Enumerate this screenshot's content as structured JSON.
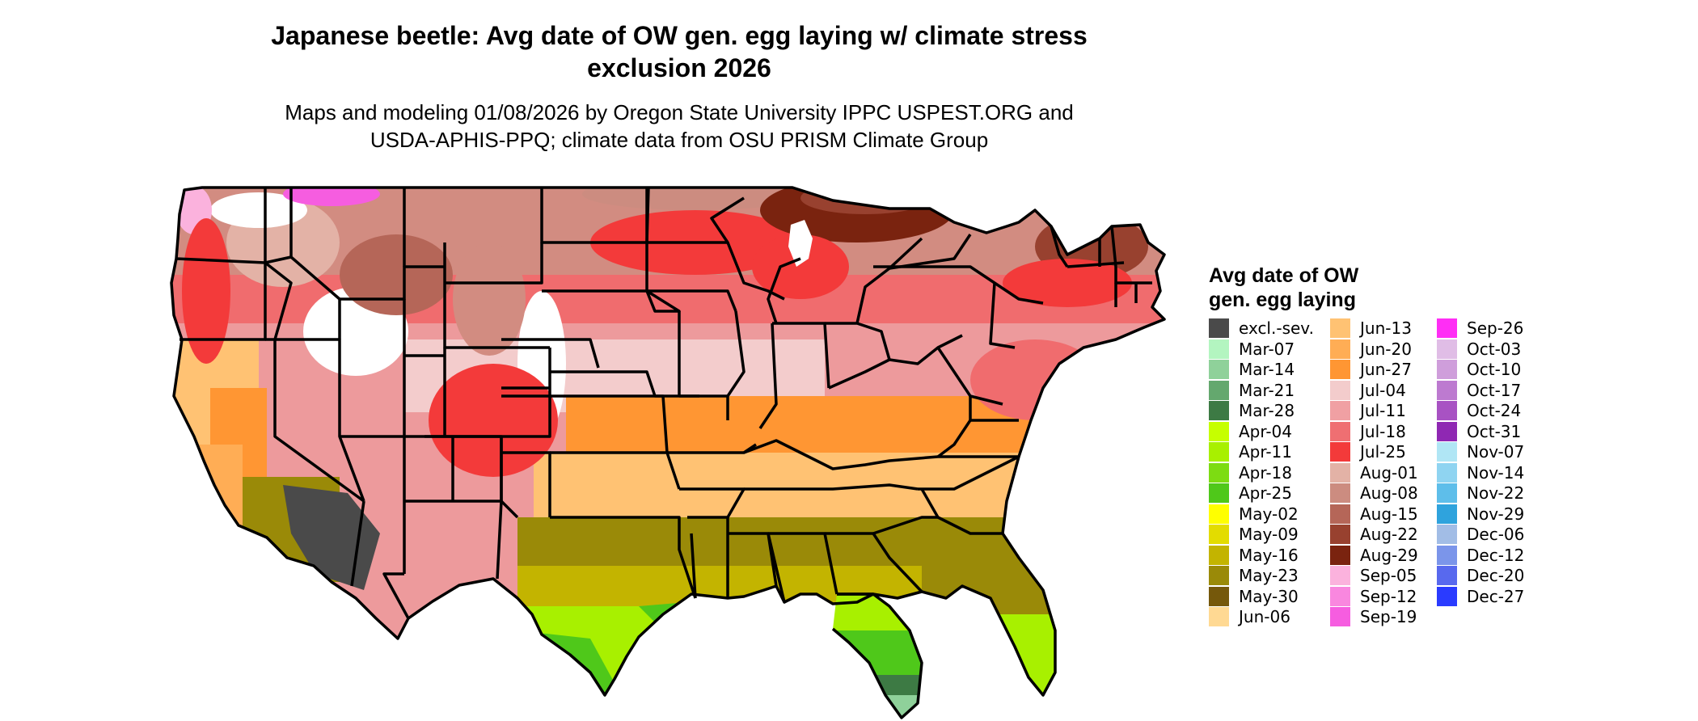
{
  "title": "Japanese beetle: Avg date of OW gen. egg laying w/ climate stress\nexclusion 2026",
  "subtitle": "Maps and modeling 01/08/2026 by Oregon State University IPPC USPEST.ORG and\nUSDA-APHIS-PPQ; climate data from OSU PRISM Climate Group",
  "legend": {
    "title": "Avg date of OW\ngen. egg laying",
    "columns": [
      [
        {
          "label": "excl.-sev.",
          "color": "#4a4a4a"
        },
        {
          "label": "Mar-07",
          "color": "#b3f5c0"
        },
        {
          "label": "Mar-14",
          "color": "#8fd19a"
        },
        {
          "label": "Mar-21",
          "color": "#64a86e"
        },
        {
          "label": "Mar-28",
          "color": "#3d7a44"
        },
        {
          "label": "Apr-04",
          "color": "#c6ff00"
        },
        {
          "label": "Apr-11",
          "color": "#a8f000"
        },
        {
          "label": "Apr-18",
          "color": "#7ddc12"
        },
        {
          "label": "Apr-25",
          "color": "#4fc81a"
        },
        {
          "label": "May-02",
          "color": "#ffff00"
        },
        {
          "label": "May-09",
          "color": "#e3dc00"
        },
        {
          "label": "May-16",
          "color": "#c3b400"
        },
        {
          "label": "May-23",
          "color": "#9a8a08"
        },
        {
          "label": "May-30",
          "color": "#75580b"
        },
        {
          "label": "Jun-06",
          "color": "#ffd993"
        }
      ],
      [
        {
          "label": "Jun-13",
          "color": "#ffc273"
        },
        {
          "label": "Jun-20",
          "color": "#ffad55"
        },
        {
          "label": "Jun-27",
          "color": "#ff9633"
        },
        {
          "label": "Jul-04",
          "color": "#f3cccc"
        },
        {
          "label": "Jul-11",
          "color": "#f0a0a3"
        },
        {
          "label": "Jul-18",
          "color": "#ef6f72"
        },
        {
          "label": "Jul-25",
          "color": "#f33a3a"
        },
        {
          "label": "Aug-01",
          "color": "#e3b2a6"
        },
        {
          "label": "Aug-08",
          "color": "#cc8c80"
        },
        {
          "label": "Aug-15",
          "color": "#b56658"
        },
        {
          "label": "Aug-22",
          "color": "#98412f"
        },
        {
          "label": "Aug-29",
          "color": "#7a230f"
        },
        {
          "label": "Sep-05",
          "color": "#fbb2dd"
        },
        {
          "label": "Sep-12",
          "color": "#f987df"
        },
        {
          "label": "Sep-19",
          "color": "#f65de0"
        }
      ],
      [
        {
          "label": "Sep-26",
          "color": "#ff2ef5"
        },
        {
          "label": "Oct-03",
          "color": "#e0bde6"
        },
        {
          "label": "Oct-10",
          "color": "#cf9edb"
        },
        {
          "label": "Oct-17",
          "color": "#bd7ad0"
        },
        {
          "label": "Oct-24",
          "color": "#a852c3"
        },
        {
          "label": "Oct-31",
          "color": "#8f28b3"
        },
        {
          "label": "Nov-07",
          "color": "#b0e6f5"
        },
        {
          "label": "Nov-14",
          "color": "#8fd4f1"
        },
        {
          "label": "Nov-22",
          "color": "#5ebeea"
        },
        {
          "label": "Nov-29",
          "color": "#2fa3dd"
        },
        {
          "label": "Dec-06",
          "color": "#a2bde6"
        },
        {
          "label": "Dec-12",
          "color": "#7b95ea"
        },
        {
          "label": "Dec-20",
          "color": "#5869ee"
        },
        {
          "label": "Dec-27",
          "color": "#2a3bff"
        }
      ]
    ]
  }
}
